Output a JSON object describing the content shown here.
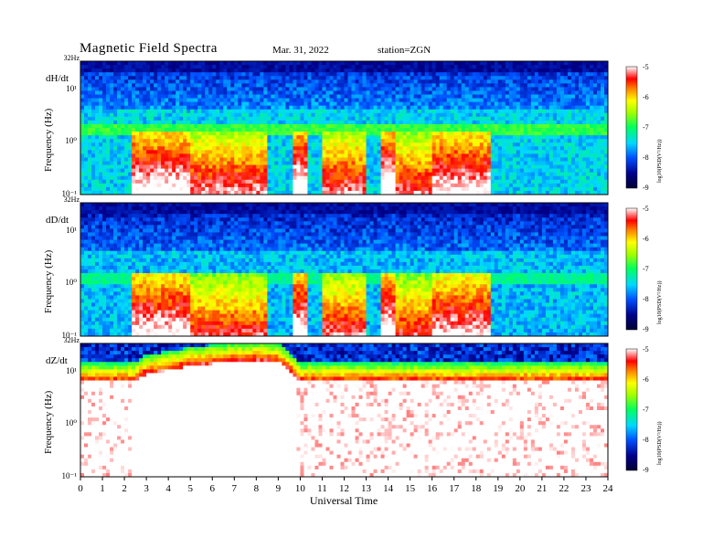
{
  "header": {
    "title": "Magnetic  Field  Spectra",
    "date": "Mar. 31, 2022",
    "station": "station=ZGN"
  },
  "colors": {
    "background": "#ffffff",
    "colormap": [
      "#000033",
      "#00008b",
      "#0040ff",
      "#00c0ff",
      "#00ff80",
      "#40ff00",
      "#ffff00",
      "#ff8000",
      "#ff0000",
      "#ffffff"
    ]
  },
  "chart_data": {
    "type": "heatmap",
    "xlabel": "Universal Time",
    "x_ticks": [
      "0",
      "1",
      "2",
      "3",
      "4",
      "5",
      "6",
      "7",
      "8",
      "9",
      "10",
      "11",
      "12",
      "13",
      "14",
      "15",
      "16",
      "17",
      "18",
      "19",
      "20",
      "21",
      "22",
      "23",
      "24"
    ],
    "xlim": [
      0,
      24
    ],
    "y_scale": "log",
    "ylim": [
      0.1,
      32
    ],
    "colorbar": {
      "label": "log10(PSD(V²/Hz))",
      "ticks": [
        "-5",
        "-6",
        "-7",
        "-8",
        "-9"
      ],
      "range": [
        -9,
        -5
      ]
    },
    "panels": [
      {
        "component": "dH/dt",
        "ylabel": "Frequency  (Hz)",
        "y_top_label": "32Hz",
        "y_ticks": [
          "10¹",
          "10⁰",
          "10⁻¹"
        ],
        "background_level": -7.8,
        "noise_band": {
          "freq_hz": 1.6,
          "level": -7.0
        },
        "events": [
          {
            "t_start": 2.4,
            "t_end": 5.0,
            "level": -5.3
          },
          {
            "t_start": 4.5,
            "t_end": 8.5,
            "level": -5.7
          },
          {
            "t_start": 9.6,
            "t_end": 10.3,
            "level": -5.2
          },
          {
            "t_start": 11.0,
            "t_end": 13.0,
            "level": -5.7
          },
          {
            "t_start": 13.7,
            "t_end": 14.4,
            "level": -5.2
          },
          {
            "t_start": 14.3,
            "t_end": 16.0,
            "level": -5.8
          },
          {
            "t_start": 16.0,
            "t_end": 18.6,
            "level": -5.4
          }
        ]
      },
      {
        "component": "dD/dt",
        "ylabel": "Frequency  (Hz)",
        "y_top_label": "32Hz",
        "y_ticks": [
          "10¹",
          "10⁰",
          "10⁻¹"
        ],
        "background_level": -7.9,
        "noise_band": {
          "freq_hz": 1.2,
          "level": -7.3
        },
        "events": [
          {
            "t_start": 2.4,
            "t_end": 5.0,
            "level": -5.4
          },
          {
            "t_start": 4.5,
            "t_end": 8.5,
            "level": -5.9
          },
          {
            "t_start": 9.6,
            "t_end": 10.3,
            "level": -5.3
          },
          {
            "t_start": 11.0,
            "t_end": 13.0,
            "level": -5.8
          },
          {
            "t_start": 13.7,
            "t_end": 14.4,
            "level": -5.3
          },
          {
            "t_start": 14.3,
            "t_end": 16.0,
            "level": -5.9
          },
          {
            "t_start": 16.0,
            "t_end": 18.6,
            "level": -5.5
          }
        ]
      },
      {
        "component": "dZ/dt",
        "ylabel": "Frequency  (Hz)",
        "y_top_label": "32Hz",
        "y_ticks": [
          "10¹",
          "10⁰",
          "10⁻¹"
        ],
        "background_level": -5.2,
        "saturated_intervals": [
          [
            2.4,
            9.9
          ]
        ],
        "cutoff_freq_hz": [
          [
            0,
            6
          ],
          [
            2.4,
            6
          ],
          [
            2.8,
            8
          ],
          [
            4.0,
            10
          ],
          [
            5.0,
            12
          ],
          [
            6.5,
            14
          ],
          [
            8.0,
            15
          ],
          [
            9.0,
            14
          ],
          [
            10.0,
            6
          ],
          [
            24,
            6
          ]
        ]
      }
    ]
  }
}
